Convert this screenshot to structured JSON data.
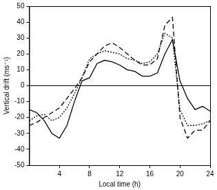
{
  "chart_data": {
    "type": "line",
    "x_label": "Local time (h)",
    "y_label": "Vertical drift (ms⁻¹)",
    "x": [
      0,
      1,
      2,
      3,
      4,
      5,
      6,
      7,
      8,
      9,
      10,
      11,
      12,
      13,
      14,
      15,
      16,
      17,
      18,
      19,
      20,
      21,
      22,
      23,
      24
    ],
    "series": [
      {
        "color": "#000000",
        "line_style": "solid",
        "values": [
          -15,
          -17,
          -22,
          -30,
          -33,
          -25,
          -10,
          3,
          5,
          14,
          16,
          15,
          13,
          10,
          9,
          6,
          6,
          8,
          20,
          29,
          3,
          -8,
          -15,
          -13,
          -16
        ]
      },
      {
        "color": "#000000",
        "line_style": "dashed",
        "values": [
          -25,
          -23,
          -20,
          -17,
          -14,
          -8,
          -2,
          5,
          15,
          20,
          25,
          27,
          24,
          20,
          16,
          13,
          13,
          17,
          38,
          43,
          -20,
          -33,
          -28,
          -28,
          -22
        ]
      },
      {
        "color": "#000000",
        "line_style": "dotted",
        "values": [
          -22,
          -19,
          -18,
          -22,
          -20,
          -14,
          -5,
          5,
          17,
          20,
          22,
          21,
          20,
          17,
          16,
          14,
          15,
          20,
          33,
          30,
          -15,
          -25,
          -25,
          -24,
          -22
        ]
      }
    ],
    "xlim": [
      0,
      24
    ],
    "xticks": [
      4,
      8,
      12,
      16,
      20,
      24
    ],
    "ylim": [
      -50,
      50
    ],
    "yticks": [
      -50,
      -40,
      -30,
      -20,
      -10,
      0,
      10,
      20,
      30,
      40,
      50
    ],
    "grid": false
  }
}
